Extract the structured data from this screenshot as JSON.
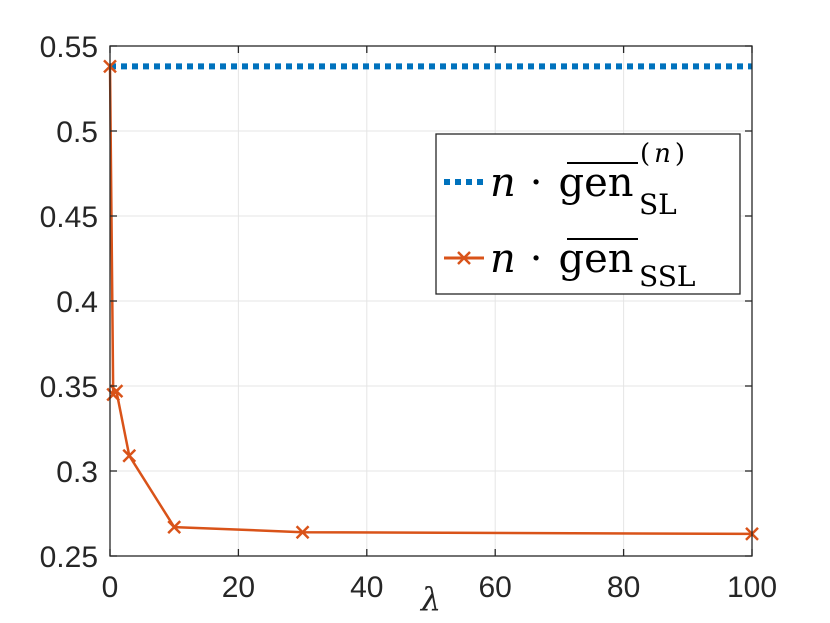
{
  "chart_data": {
    "type": "line",
    "xlabel": "λ",
    "ylabel": "",
    "title": "",
    "xlim": [
      0,
      100
    ],
    "ylim": [
      0.25,
      0.55
    ],
    "xticks": [
      0,
      20,
      40,
      60,
      80,
      100
    ],
    "xtick_labels": [
      "0",
      "20",
      "40",
      "60",
      "80",
      "100"
    ],
    "yticks": [
      0.25,
      0.3,
      0.35,
      0.4,
      0.45,
      0.5,
      0.55
    ],
    "ytick_labels": [
      "0.25",
      "0.3",
      "0.35",
      "0.4",
      "0.45",
      "0.5",
      "0.55"
    ],
    "grid": true,
    "legend_position": "top-right",
    "series": [
      {
        "name": "n · gen_SL^(n)",
        "legend": {
          "n": "n",
          "dot": "·",
          "op": "gen",
          "sub": "SL",
          "sup_open": "(",
          "sup_n": "n",
          "sup_close": ")"
        },
        "style": "dotted",
        "color": "#0072BD",
        "x": [
          0,
          100
        ],
        "y": [
          0.538,
          0.538
        ]
      },
      {
        "name": "n · gen_SSL",
        "legend": {
          "n": "n",
          "dot": "·",
          "op": "gen",
          "sub": "SSL"
        },
        "style": "solid",
        "marker": "x",
        "color": "#D95319",
        "x": [
          0,
          0.5,
          1,
          3,
          10,
          30,
          100
        ],
        "y": [
          0.538,
          0.345,
          0.347,
          0.309,
          0.267,
          0.264,
          0.263
        ]
      }
    ]
  }
}
